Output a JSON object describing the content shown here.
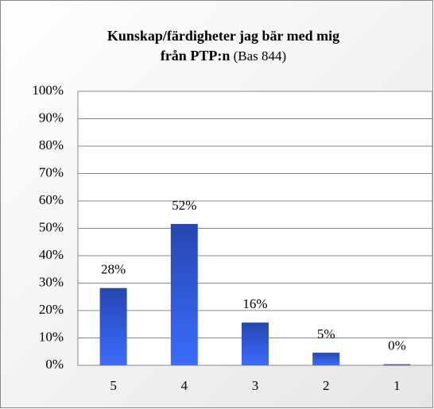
{
  "chart_data": {
    "type": "bar",
    "title": [
      "Kunskap/färdigheter jag bär med mig",
      "från PTP:n"
    ],
    "subtitle": "(Bas 844)",
    "categories": [
      "5",
      "4",
      "3",
      "2",
      "1"
    ],
    "values": [
      28.2,
      51.6,
      15.6,
      4.6,
      0.4
    ],
    "value_labels": [
      "28%",
      "52%",
      "16%",
      "5%",
      "0%"
    ],
    "color": "#2f58d8",
    "ylim": [
      0,
      100
    ],
    "yticks": [
      {
        "value": 0,
        "label": "0%"
      },
      {
        "value": 10,
        "label": "10%"
      },
      {
        "value": 20,
        "label": "20%"
      },
      {
        "value": 30,
        "label": "30%"
      },
      {
        "value": 40,
        "label": "40%"
      },
      {
        "value": 50,
        "label": "50%"
      },
      {
        "value": 60,
        "label": "60%"
      },
      {
        "value": 70,
        "label": "70%"
      },
      {
        "value": 80,
        "label": "80%"
      },
      {
        "value": 90,
        "label": "90%"
      },
      {
        "value": 100,
        "label": "100%"
      }
    ],
    "grid": true
  }
}
